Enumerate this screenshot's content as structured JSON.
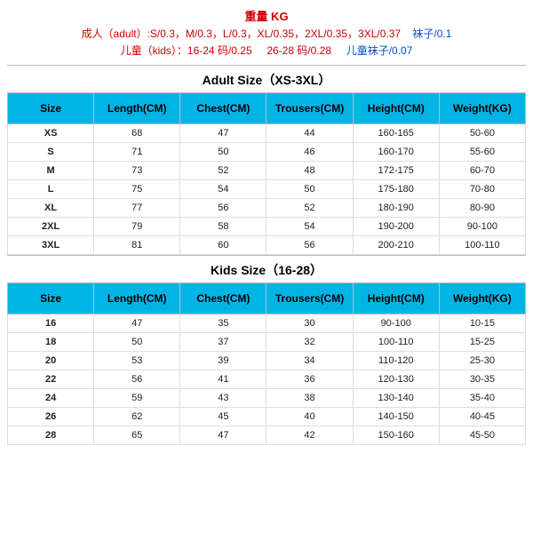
{
  "header": {
    "title": "重量 KG",
    "line1_a": "成人（adult）:S/0.3，M/0.3，L/0.3，XL/0.35，2XL/0.35，3XL/0.37",
    "line1_b": "袜子/0.1",
    "line2_a": "儿童（kids）：16-24 码/0.25",
    "line2_b": "26-28 码/0.28",
    "line2_c": "儿童袜子/0.07"
  },
  "adult": {
    "title": "Adult Size（XS-3XL）",
    "columns": [
      "Size",
      "Length(CM)",
      "Chest(CM)",
      "Trousers(CM)",
      "Height(CM)",
      "Weight(KG)"
    ],
    "rows": [
      [
        "XS",
        "68",
        "47",
        "44",
        "160-165",
        "50-60"
      ],
      [
        "S",
        "71",
        "50",
        "46",
        "160-170",
        "55-60"
      ],
      [
        "M",
        "73",
        "52",
        "48",
        "172-175",
        "60-70"
      ],
      [
        "L",
        "75",
        "54",
        "50",
        "175-180",
        "70-80"
      ],
      [
        "XL",
        "77",
        "56",
        "52",
        "180-190",
        "80-90"
      ],
      [
        "2XL",
        "79",
        "58",
        "54",
        "190-200",
        "90-100"
      ],
      [
        "3XL",
        "81",
        "60",
        "56",
        "200-210",
        "100-110"
      ]
    ]
  },
  "kids": {
    "title": "Kids Size（16-28）",
    "columns": [
      "Size",
      "Length(CM)",
      "Chest(CM)",
      "Trousers(CM)",
      "Height(CM)",
      "Weight(KG)"
    ],
    "rows": [
      [
        "16",
        "47",
        "35",
        "30",
        "90-100",
        "10-15"
      ],
      [
        "18",
        "50",
        "37",
        "32",
        "100-110",
        "15-25"
      ],
      [
        "20",
        "53",
        "39",
        "34",
        "110-120",
        "25-30"
      ],
      [
        "22",
        "56",
        "41",
        "36",
        "120-130",
        "30-35"
      ],
      [
        "24",
        "59",
        "43",
        "38",
        "130-140",
        "35-40"
      ],
      [
        "26",
        "62",
        "45",
        "40",
        "140-150",
        "40-45"
      ],
      [
        "28",
        "65",
        "47",
        "42",
        "150-160",
        "45-50"
      ]
    ]
  },
  "style": {
    "header_color": "#00b4e6",
    "border_color": "#bbbbbb",
    "row_border": "#dddddd",
    "text_red": "#d00000",
    "text_blue": "#0050c8"
  }
}
